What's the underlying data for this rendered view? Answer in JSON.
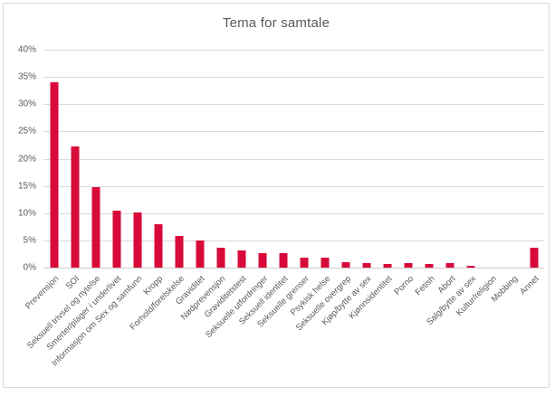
{
  "chart_data": {
    "type": "bar",
    "title": "Tema for samtale",
    "categories": [
      "Prevensjon",
      "SOI",
      "Seksuell trivsel og nytelse",
      "Smerter/plager i underlivet",
      "Informasjon om Sex og samfunn",
      "Kropp",
      "Forhold/forelskelse",
      "Graviditet",
      "Nødprevensjon",
      "Graviditetstest",
      "Seksuelle utfordringer",
      "Seksuell identitet",
      "Seksuelle grenser",
      "Psykisk helse",
      "Seksuelle overgrep",
      "Kjøp/bytte av sex",
      "Kjønnsidentitet",
      "Porno",
      "Fetish",
      "Abort",
      "Salg/bytte av sex",
      "Kultur/religion",
      "Mobbing",
      "Annet"
    ],
    "values": [
      34,
      22.3,
      14.7,
      10.4,
      10.2,
      8,
      5.8,
      5,
      3.6,
      3.1,
      2.7,
      2.7,
      1.8,
      1.8,
      1,
      0.9,
      0.7,
      0.8,
      0.7,
      0.8,
      0.4,
      0,
      0,
      3.7
    ],
    "xlabel": "",
    "ylabel": "",
    "ylim": [
      0,
      40
    ],
    "yticks": [
      0,
      5,
      10,
      15,
      20,
      25,
      30,
      35,
      40
    ],
    "ytick_suffix": "%",
    "grid": true,
    "legend_position": "none",
    "xlabel_rotation_deg": 45
  },
  "colors": {
    "bar": "#d80a3a",
    "gridline": "#d9d9d9",
    "axis_line": "#c9c9c9",
    "text": "#595959",
    "frame_border": "#d7d7de",
    "background": "#ffffff"
  }
}
